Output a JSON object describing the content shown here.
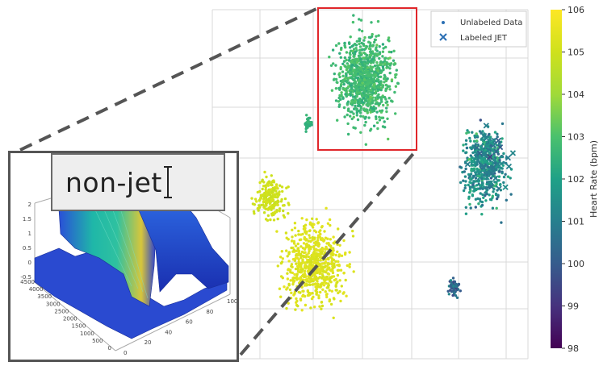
{
  "chart_data": [
    {
      "type": "scatter",
      "title": "",
      "xlabel": "",
      "ylabel": "",
      "grid": true,
      "legend": {
        "placement": "top-right",
        "entries": [
          {
            "label": "Unlabeled Data",
            "marker": "dot"
          },
          {
            "label": "Labeled JET",
            "marker": "x"
          }
        ]
      },
      "colorbar": {
        "label": "Heart Rate (bpm)",
        "range": [
          98,
          106
        ],
        "ticks": [
          "98",
          "99",
          "100",
          "101",
          "102",
          "103",
          "104",
          "105",
          "106"
        ],
        "colormap": "viridis"
      },
      "clusters": [
        {
          "region": "top-center",
          "heart_rate": 102.8,
          "spread": "high"
        },
        {
          "region": "lower-center",
          "heart_rate": 105.3,
          "spread": "low"
        },
        {
          "region": "left-mid",
          "heart_rate": 105.0,
          "spread": "low"
        },
        {
          "region": "right",
          "heart_rate": 101.5,
          "spread": "mixed",
          "labeled_jet": true
        },
        {
          "region": "bottom-right",
          "heart_rate": 100.3,
          "spread": "mixed"
        },
        {
          "region": "small-left",
          "heart_rate": 102.5,
          "spread": "low"
        }
      ],
      "highlight_box": {
        "color": "#e0262a",
        "region": "top-center cluster"
      }
    },
    {
      "type": "area",
      "description_kind": "3d-surface",
      "x_ticks": [
        "0",
        "500",
        "1000",
        "1500",
        "2000",
        "2500",
        "3000",
        "3500",
        "4000",
        "4500"
      ],
      "y_ticks": [
        "0",
        "20",
        "40",
        "60",
        "80",
        "100"
      ],
      "z_ticks": [
        "-0.5",
        "0",
        "0.5",
        "1",
        "1.5",
        "2"
      ]
    }
  ],
  "inset": {
    "text_box_label": "non-jet"
  },
  "colors": {
    "highlight_box": "#e0262a",
    "zoom_lines": "#555555",
    "grid": "#d9d9d9"
  }
}
